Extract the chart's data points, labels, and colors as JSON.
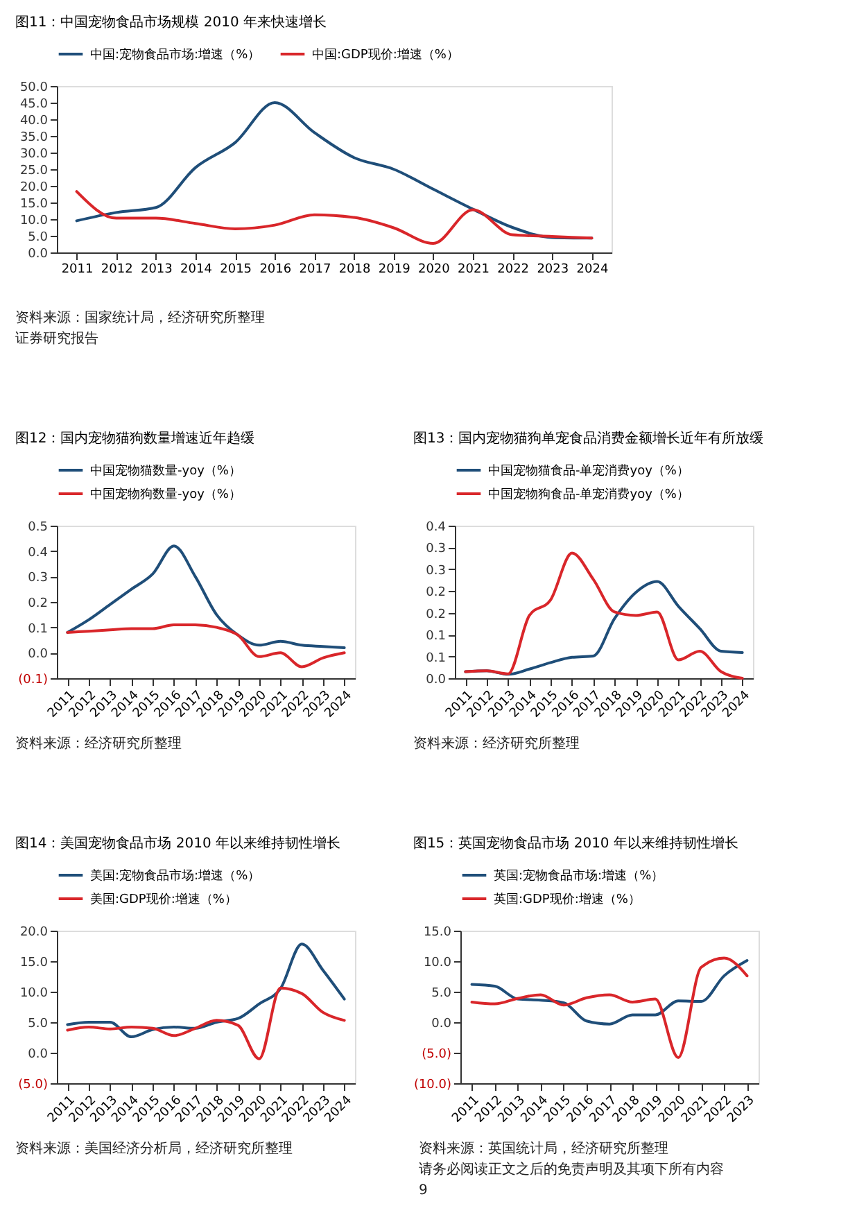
{
  "chart_data": [
    {
      "type": "line",
      "title": "图11：中国宠物食品市场规模 2010 年来快速增长",
      "categories": [
        "2011",
        "2012",
        "2013",
        "2014",
        "2015",
        "2016",
        "2017",
        "2018",
        "2019",
        "2020",
        "2021",
        "2022",
        "2023",
        "2024"
      ],
      "series": [
        {
          "name": "中国:宠物食品市场:增速（%）",
          "color": "#1f4e79",
          "values": [
            9.5,
            12,
            13.5,
            25.5,
            33,
            45,
            36,
            28.5,
            25,
            19,
            13,
            7.5,
            4.5,
            4.3
          ]
        },
        {
          "name": "中国:GDP现价:增速（%）",
          "color": "#d9262a",
          "values": [
            18.3,
            10.3,
            10.3,
            8.7,
            7.1,
            8.2,
            11.3,
            10.5,
            7.4,
            2.7,
            12.8,
            5.3,
            4.8,
            4.3
          ]
        }
      ],
      "ylim": [
        0,
        50
      ],
      "yticks": [
        {
          "value": 0,
          "label": "0.0"
        },
        {
          "value": 5,
          "label": "5.0"
        },
        {
          "value": 10,
          "label": "10.0"
        },
        {
          "value": 15,
          "label": "15.0"
        },
        {
          "value": 20,
          "label": "20.0"
        },
        {
          "value": 25,
          "label": "25.0"
        },
        {
          "value": 30,
          "label": "30.0"
        },
        {
          "value": 35,
          "label": "35.0"
        },
        {
          "value": 40,
          "label": "40.0"
        },
        {
          "value": 45,
          "label": "45.0"
        },
        {
          "value": 50,
          "label": "50.0"
        }
      ],
      "legend": "top",
      "grid": false,
      "line_style": "solid",
      "annotations": [
        "资料来源：国家统计局，经济研究所整理",
        "证券研究报告"
      ]
    },
    {
      "type": "line",
      "title": "图12：国内宠物猫狗数量增速近年趋缓",
      "categories": [
        "2011",
        "2012",
        "2013",
        "2014",
        "2015",
        "2016",
        "2017",
        "2018",
        "2019",
        "2020",
        "2021",
        "2022",
        "2023",
        "2024"
      ],
      "series": [
        {
          "name": "中国宠物猫数量-yoy（%）",
          "color": "#1f4e79",
          "values": [
            0.08,
            0.13,
            0.19,
            0.25,
            0.31,
            0.42,
            0.3,
            0.15,
            0.07,
            0.03,
            0.045,
            0.03,
            0.025,
            0.02
          ]
        },
        {
          "name": "中国宠物狗数量-yoy（%）",
          "color": "#d9262a",
          "values": [
            0.08,
            0.085,
            0.09,
            0.095,
            0.095,
            0.11,
            0.11,
            0.1,
            0.07,
            -0.015,
            0.0,
            -0.055,
            -0.02,
            0.0
          ]
        }
      ],
      "ylim": [
        -0.1,
        0.5
      ],
      "yticks": [
        {
          "value": -0.1,
          "label": "(0.1)"
        },
        {
          "value": 0,
          "label": "0.0"
        },
        {
          "value": 0.1,
          "label": "0.1"
        },
        {
          "value": 0.2,
          "label": "0.2"
        },
        {
          "value": 0.3,
          "label": "0.3"
        },
        {
          "value": 0.4,
          "label": "0.4"
        },
        {
          "value": 0.5,
          "label": "0.5"
        }
      ],
      "legend": "top",
      "grid": false,
      "line_style": "solid",
      "annotations": [
        "资料来源：经济研究所整理"
      ]
    },
    {
      "type": "line",
      "title": "图13：国内宠物猫狗单宠食品消费金额增长近年有所放缓",
      "categories": [
        "2011",
        "2012",
        "2013",
        "2014",
        "2015",
        "2016",
        "2017",
        "2018",
        "2019",
        "2020",
        "2021",
        "2022",
        "2023",
        "2024"
      ],
      "series": [
        {
          "name": "中国宠物猫食品-单宠消费yoy（%）",
          "color": "#1f4e79",
          "values": [
            0.015,
            0.017,
            0.009,
            0.021,
            0.036,
            0.048,
            0.051,
            0.137,
            0.197,
            0.222,
            0.165,
            0.114,
            0.062,
            0.059
          ]
        },
        {
          "name": "中国宠物狗食品-单宠消费yoy（%）",
          "color": "#d9262a",
          "values": [
            0.015,
            0.017,
            0.01,
            0.144,
            0.18,
            0.287,
            0.227,
            0.152,
            0.144,
            0.152,
            0.042,
            0.062,
            0.015,
            0.0
          ]
        }
      ],
      "ylim": [
        0,
        0.35
      ],
      "yticks": [
        {
          "value": 0,
          "label": "0.0"
        },
        {
          "value": 0.05,
          "label": "0.1"
        },
        {
          "value": 0.1,
          "label": "0.1"
        },
        {
          "value": 0.15,
          "label": "0.2"
        },
        {
          "value": 0.2,
          "label": "0.2"
        },
        {
          "value": 0.25,
          "label": "0.3"
        },
        {
          "value": 0.3,
          "label": "0.3"
        },
        {
          "value": 0.35,
          "label": "0.4"
        }
      ],
      "legend": "top",
      "grid": false,
      "line_style": "solid",
      "annotations": [
        "资料来源：经济研究所整理"
      ]
    },
    {
      "type": "line",
      "title": "图14：美国宠物食品市场 2010 年以来维持韧性增长",
      "categories": [
        "2011",
        "2012",
        "2013",
        "2014",
        "2015",
        "2016",
        "2017",
        "2018",
        "2019",
        "2020",
        "2021",
        "2022",
        "2023",
        "2024"
      ],
      "series": [
        {
          "name": "美国:宠物食品市场:增速（%）",
          "color": "#1f4e79",
          "values": [
            4.6,
            5.0,
            5.0,
            2.6,
            3.8,
            4.2,
            4.0,
            5.0,
            5.6,
            8.0,
            10.5,
            17.8,
            13.5,
            8.8
          ]
        },
        {
          "name": "美国:GDP现价:增速（%）",
          "color": "#d9262a",
          "values": [
            3.7,
            4.2,
            3.9,
            4.2,
            4.0,
            2.8,
            4.0,
            5.3,
            4.5,
            -1.0,
            10.6,
            9.7,
            6.6,
            5.3
          ]
        }
      ],
      "ylim": [
        -5,
        20
      ],
      "yticks": [
        {
          "value": -5,
          "label": "(5.0)"
        },
        {
          "value": 0,
          "label": "0.0"
        },
        {
          "value": 5,
          "label": "5.0"
        },
        {
          "value": 10,
          "label": "10.0"
        },
        {
          "value": 15,
          "label": "15.0"
        },
        {
          "value": 20,
          "label": "20.0"
        }
      ],
      "legend": "top",
      "grid": false,
      "line_style": "solid",
      "annotations": [
        "资料来源：美国经济分析局，经济研究所整理"
      ]
    },
    {
      "type": "line",
      "title": "图15：英国宠物食品市场 2010 年以来维持韧性增长",
      "categories": [
        "2011",
        "2012",
        "2013",
        "2014",
        "2015",
        "2016",
        "2017",
        "2018",
        "2019",
        "2020",
        "2021",
        "2022",
        "2023"
      ],
      "series": [
        {
          "name": "英国:宠物食品市场:增速（%）",
          "color": "#1f4e79",
          "values": [
            6.2,
            5.9,
            3.8,
            3.6,
            3.2,
            0.2,
            -0.3,
            1.2,
            1.2,
            3.5,
            3.4,
            7.6,
            10.1
          ]
        },
        {
          "name": "英国:GDP现价:增速（%）",
          "color": "#d9262a",
          "values": [
            3.3,
            3.0,
            3.9,
            4.5,
            2.8,
            4.0,
            4.5,
            3.3,
            3.8,
            -5.8,
            9.0,
            10.5,
            7.6
          ]
        }
      ],
      "ylim": [
        -10,
        15
      ],
      "yticks": [
        {
          "value": -10,
          "label": "(10.0)"
        },
        {
          "value": -5,
          "label": "(5.0)"
        },
        {
          "value": 0,
          "label": "0.0"
        },
        {
          "value": 5,
          "label": "5.0"
        },
        {
          "value": 10,
          "label": "10.0"
        },
        {
          "value": 15,
          "label": "15.0"
        }
      ],
      "legend": "top",
      "grid": false,
      "line_style": "solid",
      "annotations": [
        "资料来源：英国统计局，经济研究所整理",
        "请务必阅读正文之后的免责声明及其项下所有内容",
        "9"
      ]
    }
  ]
}
